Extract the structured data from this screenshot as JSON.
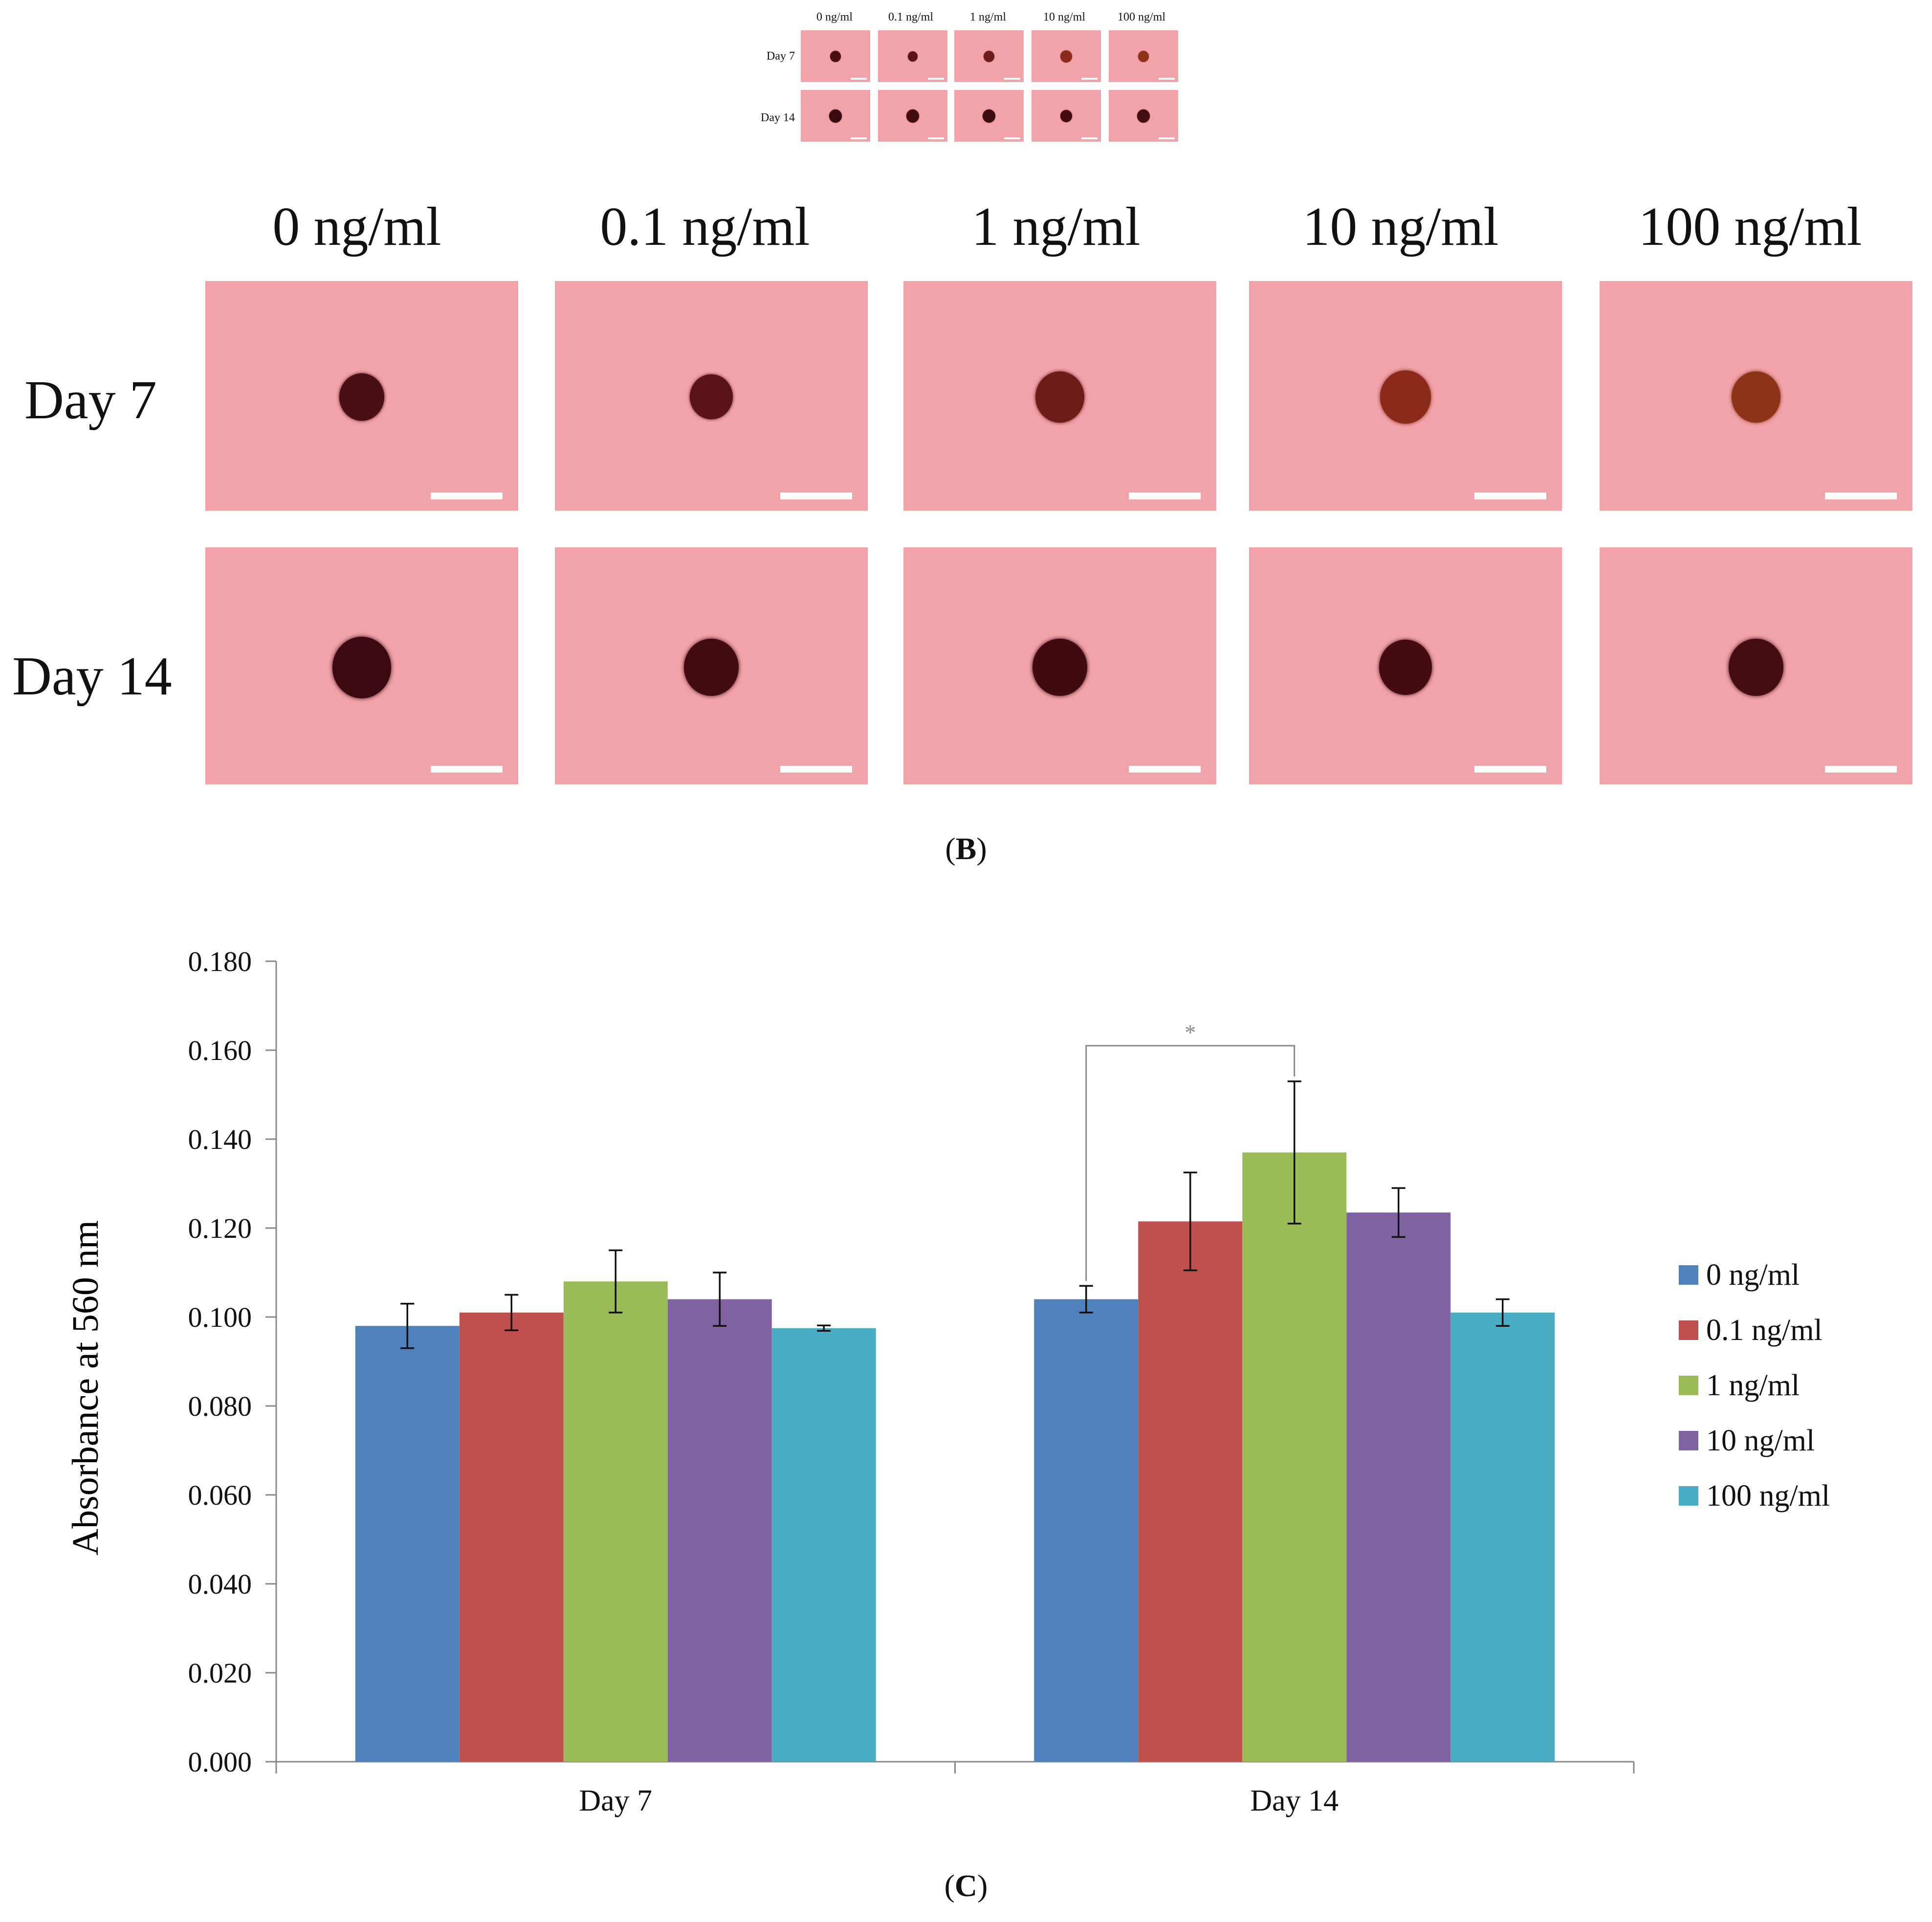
{
  "thumbnail": {
    "columns": [
      "0 ng/ml",
      "0.1 ng/ml",
      "1 ng/ml",
      "10 ng/ml",
      "100 ng/ml"
    ],
    "rows": [
      "Day 7",
      "Day 14"
    ]
  },
  "panel_b": {
    "columns": [
      "0 ng/ml",
      "0.1 ng/ml",
      "1 ng/ml",
      "10 ng/ml",
      "100 ng/ml"
    ],
    "rows": [
      "Day 7",
      "Day 14"
    ],
    "caption_open": "(",
    "caption_letter": "B",
    "caption_close": ")",
    "background_color": "#f2a3aa",
    "spot_colors": {
      "day7": [
        "#4a0f14",
        "#5a1418",
        "#6e1c1a",
        "#8a2a1a",
        "#8c3318"
      ],
      "day14": [
        "#3a0a10",
        "#420b10",
        "#3f0a10",
        "#440b10",
        "#450c12"
      ]
    }
  },
  "panel_c": {
    "caption_open": "(",
    "caption_letter": "C",
    "caption_close": ")"
  },
  "chart_data": {
    "type": "bar",
    "title": "",
    "xlabel": "",
    "ylabel": "Absorbance at 560 nm",
    "categories": [
      "Day 7",
      "Day 14"
    ],
    "ylim": [
      0,
      0.18
    ],
    "yticks": [
      "0.000",
      "0.020",
      "0.040",
      "0.060",
      "0.080",
      "0.100",
      "0.120",
      "0.140",
      "0.160",
      "0.180"
    ],
    "ytick_values": [
      0,
      0.02,
      0.04,
      0.06,
      0.08,
      0.1,
      0.12,
      0.14,
      0.16,
      0.18
    ],
    "series": [
      {
        "name": "0 ng/ml",
        "color": "#4f81bd",
        "values": [
          0.098,
          0.104
        ],
        "errors": [
          0.005,
          0.003
        ]
      },
      {
        "name": "0.1 ng/ml",
        "color": "#c0504d",
        "values": [
          0.101,
          0.1215
        ],
        "errors": [
          0.004,
          0.011
        ]
      },
      {
        "name": "1 ng/ml",
        "color": "#9bbb59",
        "values": [
          0.108,
          0.137
        ],
        "errors": [
          0.007,
          0.016
        ]
      },
      {
        "name": "10 ng/ml",
        "color": "#8064a2",
        "values": [
          0.104,
          0.1235
        ],
        "errors": [
          0.006,
          0.0055
        ]
      },
      {
        "name": "100 ng/ml",
        "color": "#4bacc6",
        "values": [
          0.0975,
          0.101
        ],
        "errors": [
          0.0006,
          0.003
        ]
      }
    ],
    "annotations": [
      {
        "text": "*",
        "category": "Day 14",
        "from_series": "0 ng/ml",
        "to_series": "1 ng/ml",
        "level": 0.161
      }
    ],
    "legend": "right",
    "grid": false
  }
}
